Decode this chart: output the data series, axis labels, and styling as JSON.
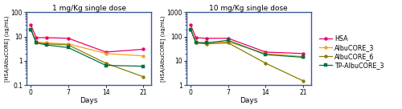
{
  "title1": "1 mg/Kg single dose",
  "title2": "10 mg/Kg single dose",
  "xlabel": "Days",
  "ylabel": "[HSA/AlbuCORE] (ug/mL)",
  "colors": {
    "HSA": "#e8006e",
    "AlbuCORE_3": "#f5a020",
    "AlbuCORE_6": "#8b7d00",
    "TP-AlbuCORE_3": "#007040"
  },
  "legend_labels": [
    "HSA",
    "AlbuCORE_3",
    "AlbuCORE_6",
    "TP-AlbuCORE_3"
  ],
  "legend_display": [
    "HSA",
    "AlbuCORE_3",
    "AlbuCORE_6",
    "TP-AlbuCORE_3"
  ],
  "days1": [
    0,
    1,
    3,
    7,
    14,
    21
  ],
  "dose1": {
    "HSA": [
      30,
      9.0,
      9.0,
      8.5,
      2.3,
      3.0
    ],
    "AlbuCORE_3": [
      20,
      6.0,
      5.5,
      5.0,
      2.0,
      1.6
    ],
    "AlbuCORE_6": [
      20,
      5.5,
      5.0,
      4.5,
      0.8,
      0.22
    ],
    "TP-AlbuCORE_3": [
      20,
      5.5,
      4.5,
      3.5,
      0.65,
      0.6
    ]
  },
  "days2": [
    0,
    1,
    3,
    7,
    14,
    21
  ],
  "dose10": {
    "HSA": [
      300,
      90,
      85,
      85,
      23,
      20
    ],
    "AlbuCORE_3": [
      200,
      60,
      55,
      60,
      20,
      15
    ],
    "AlbuCORE_6": [
      200,
      55,
      50,
      55,
      8.0,
      1.5
    ],
    "TP-AlbuCORE_3": [
      200,
      55,
      55,
      70,
      18,
      14
    ]
  },
  "ylim1": [
    0.1,
    100
  ],
  "ylim2": [
    1,
    1000
  ],
  "panel_border_color": "#3c5a9a",
  "bg_color": "white"
}
